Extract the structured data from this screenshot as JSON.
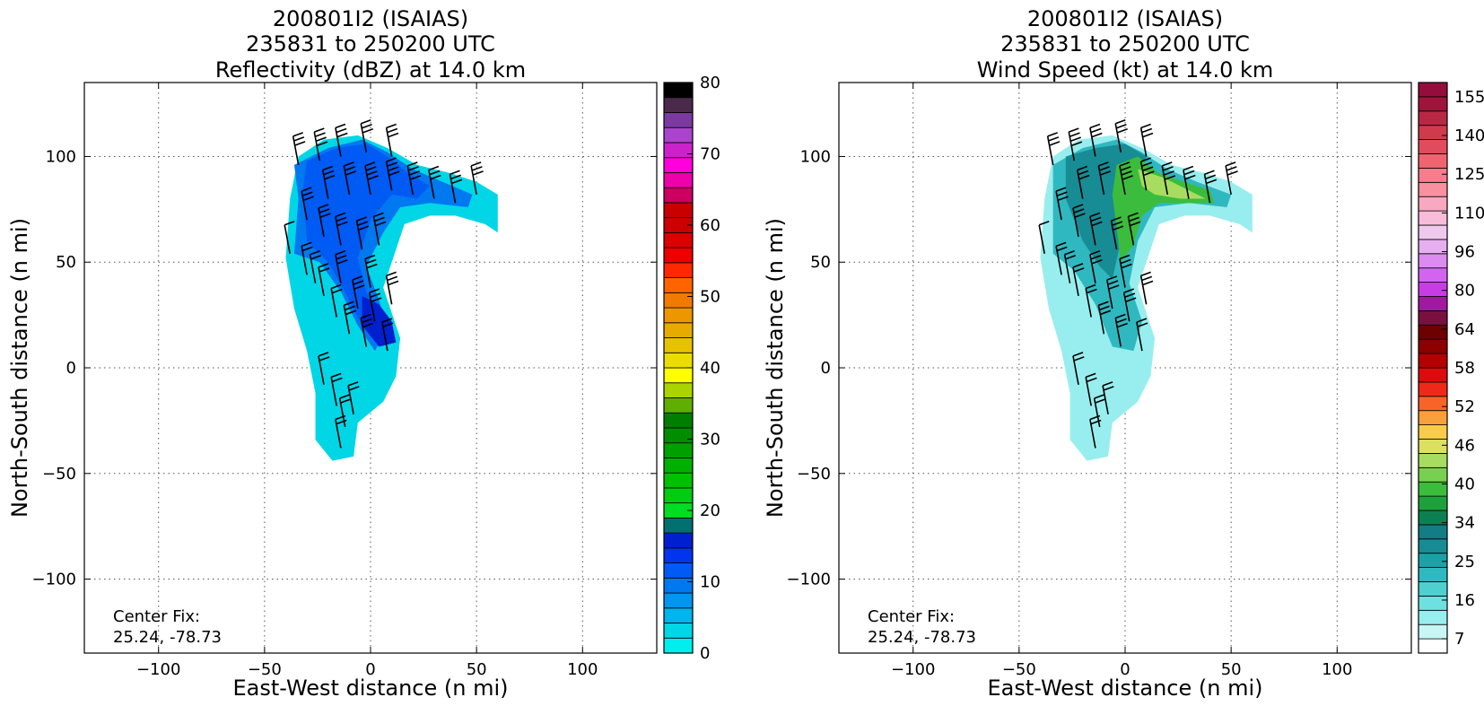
{
  "chart_data": [
    {
      "type": "heatmap",
      "title_lines": [
        "200801I2 (ISAIAS)",
        "235831 to 250200 UTC",
        "Reflectivity (dBZ) at 14.0 km"
      ],
      "xlabel": "East-West distance (n mi)",
      "ylabel": "North-South distance (n mi)",
      "xlim": [
        -135,
        135
      ],
      "ylim": [
        -135,
        135
      ],
      "xticks": [
        -100,
        -50,
        0,
        50,
        100
      ],
      "yticks": [
        -100,
        -50,
        0,
        50,
        100
      ],
      "xtick_labels": [
        "−100",
        "−50",
        "0",
        "50",
        "100"
      ],
      "ytick_labels": [
        "−100",
        "−50",
        "0",
        "50",
        "100"
      ],
      "grid": true,
      "annotation_lines": [
        "Center Fix:",
        "25.24, -78.73"
      ],
      "colorbar": {
        "min": 0,
        "max": 80,
        "tick_values": [
          0,
          10,
          20,
          30,
          40,
          50,
          60,
          70,
          80
        ],
        "tick_labels": [
          "0",
          "10",
          "20",
          "30",
          "40",
          "50",
          "60",
          "70",
          "80"
        ],
        "colors": [
          "#00eeee",
          "#00d6e6",
          "#00b4ee",
          "#0096f0",
          "#0078f0",
          "#005af4",
          "#0034ee",
          "#0020d0",
          "#007070",
          "#00dd22",
          "#00cc11",
          "#00c000",
          "#00b000",
          "#00a000",
          "#008e00",
          "#007e00",
          "#5fae00",
          "#aad400",
          "#ffff00",
          "#ecdd00",
          "#e6c200",
          "#e6aa00",
          "#ec9600",
          "#f27a00",
          "#ff6400",
          "#ff2800",
          "#ee0000",
          "#dd0000",
          "#cc0000",
          "#c80000",
          "#cc0060",
          "#ee00aa",
          "#ff00dd",
          "#cc22cc",
          "#aa44cc",
          "#7a3aa0",
          "#4a2a4a",
          "#000000"
        ]
      },
      "barbs": [
        [
          -38,
          54,
          10
        ],
        [
          -30,
          44,
          18
        ],
        [
          -22,
          34,
          22
        ],
        [
          -16,
          24,
          24
        ],
        [
          -10,
          16,
          28
        ],
        [
          -2,
          10,
          28
        ],
        [
          8,
          8,
          24
        ],
        [
          -22,
          -8,
          24
        ],
        [
          -16,
          -18,
          22
        ],
        [
          -12,
          -28,
          20
        ],
        [
          -14,
          -38,
          22
        ],
        [
          -8,
          -22,
          20
        ],
        [
          -30,
          70,
          26
        ],
        [
          -22,
          62,
          28
        ],
        [
          -14,
          58,
          28
        ],
        [
          -4,
          56,
          30
        ],
        [
          4,
          58,
          32
        ],
        [
          -20,
          80,
          32
        ],
        [
          -10,
          82,
          34
        ],
        [
          0,
          82,
          36
        ],
        [
          10,
          84,
          36
        ],
        [
          20,
          82,
          38
        ],
        [
          30,
          80,
          32
        ],
        [
          40,
          78,
          30
        ],
        [
          -34,
          96,
          34
        ],
        [
          -24,
          98,
          36
        ],
        [
          -14,
          100,
          34
        ],
        [
          -2,
          102,
          32
        ],
        [
          10,
          100,
          30
        ],
        [
          50,
          82,
          26
        ],
        [
          -26,
          40,
          24
        ],
        [
          -14,
          40,
          26
        ],
        [
          0,
          38,
          28
        ],
        [
          -6,
          28,
          28
        ],
        [
          2,
          22,
          30
        ],
        [
          10,
          30,
          28
        ]
      ],
      "echo_strength": [
        [
          -40,
          52
        ],
        [
          -36,
          28
        ],
        [
          -30,
          8
        ],
        [
          -26,
          -12
        ],
        [
          -26,
          -34
        ],
        [
          -18,
          -44
        ],
        [
          -8,
          -42
        ],
        [
          -6,
          -26
        ],
        [
          6,
          -16
        ],
        [
          12,
          -4
        ],
        [
          14,
          14
        ],
        [
          10,
          26
        ],
        [
          6,
          38
        ],
        [
          10,
          50
        ],
        [
          16,
          68
        ],
        [
          28,
          72
        ],
        [
          40,
          72
        ],
        [
          54,
          68
        ],
        [
          60,
          64
        ],
        [
          60,
          82
        ],
        [
          50,
          88
        ],
        [
          38,
          92
        ],
        [
          22,
          96
        ],
        [
          8,
          104
        ],
        [
          -6,
          110
        ],
        [
          -22,
          108
        ],
        [
          -34,
          100
        ],
        [
          -38,
          80
        ]
      ]
    },
    {
      "type": "heatmap",
      "title_lines": [
        "200801I2 (ISAIAS)",
        "235831 to 250200 UTC",
        "Wind Speed (kt) at 14.0 km"
      ],
      "xlabel": "East-West distance (n mi)",
      "ylabel": "North-South distance (n mi)",
      "xlim": [
        -135,
        135
      ],
      "ylim": [
        -135,
        135
      ],
      "xticks": [
        -100,
        -50,
        0,
        50,
        100
      ],
      "yticks": [
        -100,
        -50,
        0,
        50,
        100
      ],
      "xtick_labels": [
        "−100",
        "−50",
        "0",
        "50",
        "100"
      ],
      "ytick_labels": [
        "−100",
        "−50",
        "0",
        "50",
        "100"
      ],
      "grid": true,
      "annotation_lines": [
        "Center Fix:",
        "25.24, -78.73"
      ],
      "colorbar": {
        "tick_labels": [
          "7",
          "16",
          "25",
          "34",
          "40",
          "46",
          "52",
          "58",
          "64",
          "80",
          "96",
          "110",
          "125",
          "140",
          "155"
        ],
        "colors": [
          "#ffffff",
          "#c8f6f6",
          "#98eeee",
          "#6ee0e0",
          "#4ed0d0",
          "#30b8c0",
          "#1ea0a8",
          "#188c94",
          "#147c84",
          "#0c8050",
          "#1ea03a",
          "#3cbc3c",
          "#78d050",
          "#a8dc60",
          "#dce060",
          "#f8cc4a",
          "#f8a03c",
          "#f86428",
          "#f02818",
          "#dc0c0c",
          "#b40000",
          "#8c0000",
          "#6e0000",
          "#7a1040",
          "#a01aa0",
          "#c83ce6",
          "#d264f0",
          "#dc8cf0",
          "#e6b0f0",
          "#f0c8ee",
          "#f8bcd8",
          "#f8a8c0",
          "#f890a0",
          "#f87c8c",
          "#f06470",
          "#e04c5c",
          "#d03a4c",
          "#b82844",
          "#a0143c",
          "#960c3c"
        ]
      },
      "barbs": [
        [
          -38,
          54,
          10
        ],
        [
          -30,
          44,
          18
        ],
        [
          -22,
          34,
          22
        ],
        [
          -16,
          24,
          24
        ],
        [
          -10,
          16,
          28
        ],
        [
          -2,
          10,
          28
        ],
        [
          8,
          8,
          24
        ],
        [
          -22,
          -8,
          24
        ],
        [
          -16,
          -18,
          22
        ],
        [
          -12,
          -28,
          20
        ],
        [
          -14,
          -38,
          22
        ],
        [
          -8,
          -22,
          20
        ],
        [
          -30,
          70,
          26
        ],
        [
          -22,
          62,
          28
        ],
        [
          -14,
          58,
          28
        ],
        [
          -4,
          56,
          30
        ],
        [
          4,
          58,
          32
        ],
        [
          -20,
          80,
          32
        ],
        [
          -10,
          82,
          34
        ],
        [
          0,
          82,
          36
        ],
        [
          10,
          84,
          36
        ],
        [
          20,
          82,
          38
        ],
        [
          30,
          80,
          32
        ],
        [
          40,
          78,
          30
        ],
        [
          -34,
          96,
          34
        ],
        [
          -24,
          98,
          36
        ],
        [
          -14,
          100,
          34
        ],
        [
          -2,
          102,
          32
        ],
        [
          10,
          100,
          30
        ],
        [
          50,
          82,
          26
        ],
        [
          -26,
          40,
          24
        ],
        [
          -14,
          40,
          26
        ],
        [
          0,
          38,
          28
        ],
        [
          -6,
          28,
          28
        ],
        [
          2,
          22,
          30
        ],
        [
          10,
          30,
          28
        ]
      ]
    }
  ]
}
